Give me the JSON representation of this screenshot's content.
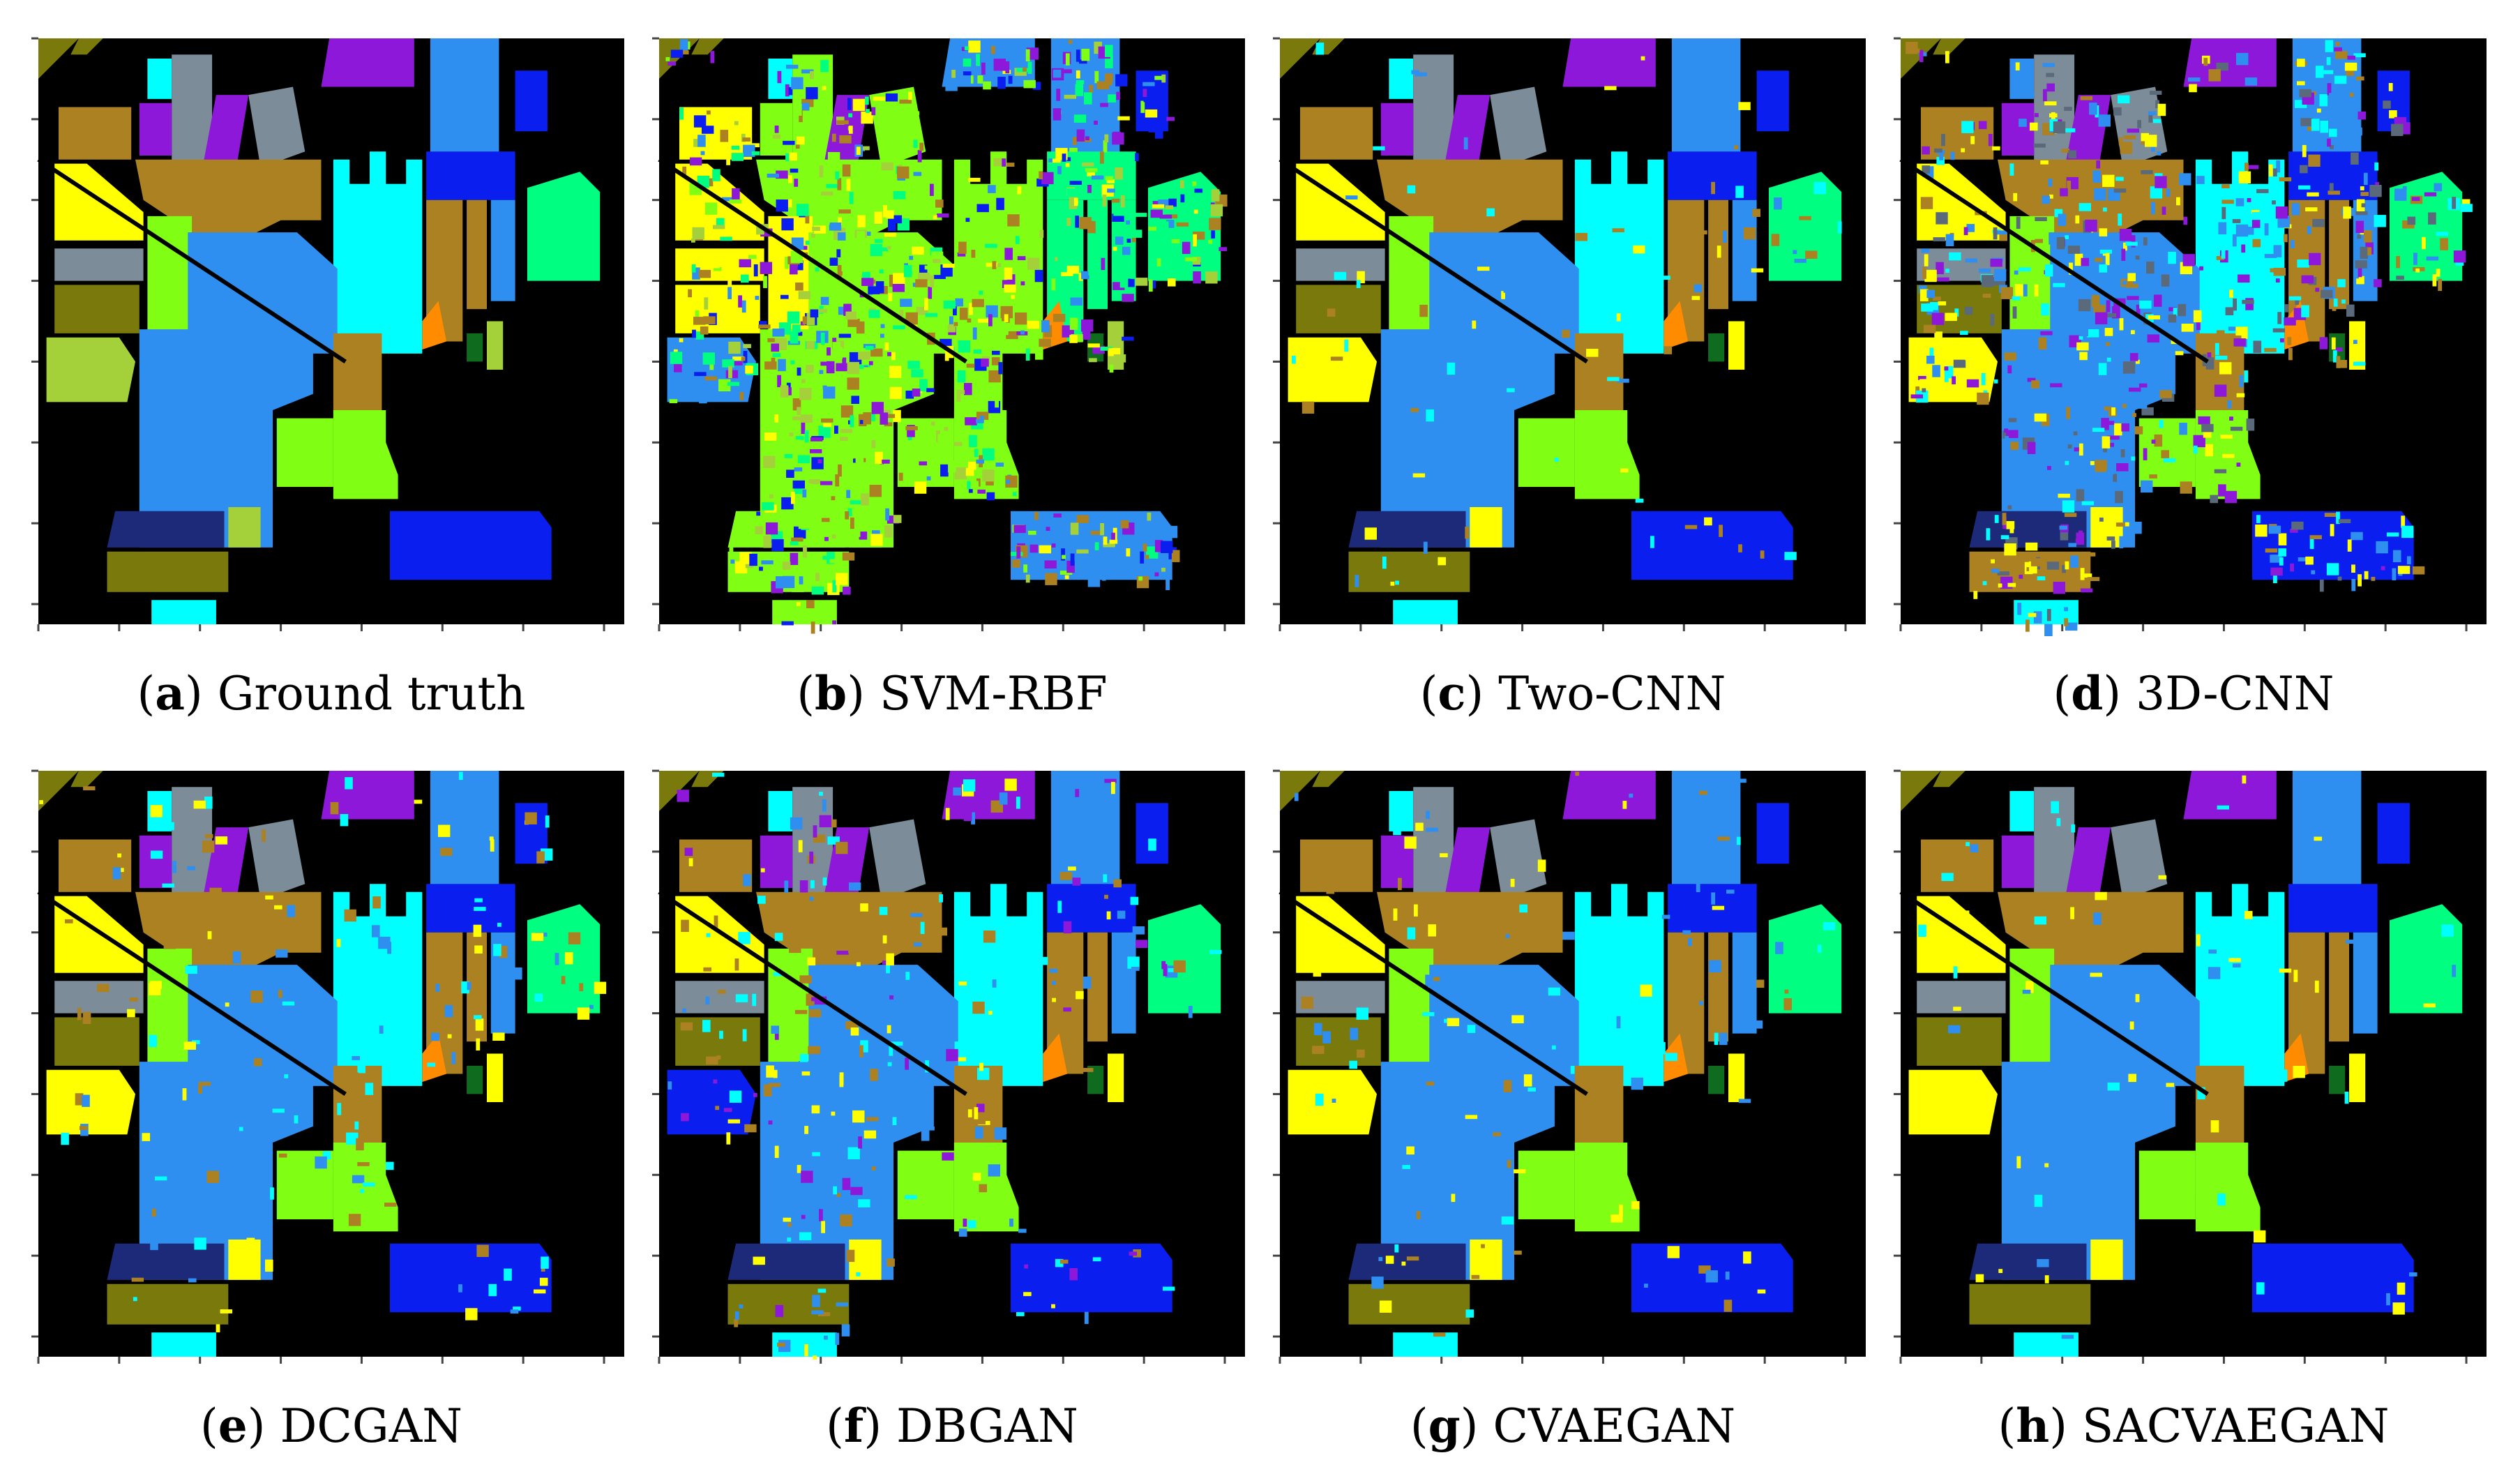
{
  "figure": {
    "panels": [
      {
        "letter": "a",
        "label": "Ground truth",
        "variant": "gt"
      },
      {
        "letter": "b",
        "label": "SVM-RBF",
        "variant": "svm"
      },
      {
        "letter": "c",
        "label": "Two-CNN",
        "variant": "twocnn"
      },
      {
        "letter": "d",
        "label": "3D-CNN",
        "variant": "cnn3d"
      },
      {
        "letter": "e",
        "label": "DCGAN",
        "variant": "dcgan"
      },
      {
        "letter": "f",
        "label": "DBGAN",
        "variant": "dbgan"
      },
      {
        "letter": "g",
        "label": "CVAEGAN",
        "variant": "cvaegan"
      },
      {
        "letter": "h",
        "label": "SACVAEGAN",
        "variant": "sacvaegan"
      }
    ],
    "colors": {
      "background": "#000000",
      "olive": "#7a7a0c",
      "cyan": "#00ffff",
      "gray": "#7c8c98",
      "purple": "#8e18d9",
      "sky_blue": "#2e8ff0",
      "dark_blue": "#0a1ef0",
      "brown_orange": "#ac8122",
      "yellow": "#ffff00",
      "lime": "#80ff14",
      "yellow_green": "#a4d03a",
      "bright_green": "#00ff80",
      "navy": "#1d2a7a",
      "orange": "#ff8c00",
      "dark_green": "#0f6b1e",
      "slate": "#5a6a7a"
    }
  }
}
